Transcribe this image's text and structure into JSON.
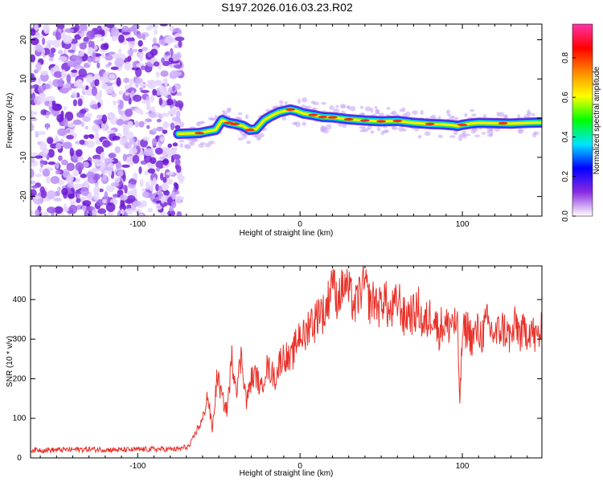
{
  "title": "S197.2026.016.03.23.R02",
  "chart_data": [
    {
      "type": "heatmap",
      "name": "spectrogram",
      "xlabel": "Height of straight line (km)",
      "ylabel": "Frequency (Hz)",
      "xlim": [
        -166,
        149
      ],
      "ylim": [
        -25,
        24
      ],
      "xticks": [
        -100,
        0,
        100
      ],
      "yticks": [
        -20,
        -10,
        0,
        10,
        20
      ],
      "noise_region_x": [
        -166,
        -73
      ],
      "signal_track": {
        "x": [
          -75,
          -62,
          -52,
          -48,
          -44,
          -40,
          -35,
          -31,
          -27,
          -22,
          -18,
          -13,
          -10,
          -6,
          -2,
          2,
          8,
          14,
          20,
          30,
          40,
          50,
          60,
          70,
          80,
          88,
          94,
          97,
          100,
          105,
          110,
          120,
          130,
          140,
          149
        ],
        "y": [
          -4,
          -3.8,
          -3,
          -0.5,
          -1.2,
          -1.5,
          -2,
          -3,
          -2.8,
          -0.5,
          0.5,
          1.5,
          1.8,
          2.2,
          1.8,
          1.2,
          0.8,
          0.3,
          0.2,
          -0.3,
          -0.6,
          -0.8,
          -0.7,
          -1.2,
          -1.5,
          -1.6,
          -1.8,
          -2.0,
          -1.7,
          -1.4,
          -1.2,
          -1.3,
          -1.4,
          -1.2,
          -1.1
        ]
      },
      "colorbar": {
        "label": "Normalized spectral amplitude",
        "ticks": [
          0.0,
          0.2,
          0.4,
          0.6,
          0.8
        ],
        "tick_labels": [
          "0.0",
          "0.2",
          "0.4",
          "0.6",
          "0.8"
        ],
        "range": [
          0,
          0.97
        ],
        "colors": [
          "#ffffff",
          "#8a2be2",
          "#0000ff",
          "#00e5ff",
          "#00ff00",
          "#ffff00",
          "#ff8800",
          "#ff0000",
          "#ff33aa"
        ]
      }
    },
    {
      "type": "line",
      "name": "snr",
      "xlabel": "Height of straight line (km)",
      "ylabel": "SNR (10 * v/v)",
      "xlim": [
        -166,
        149
      ],
      "ylim": [
        0,
        485
      ],
      "xticks": [
        -100,
        0,
        100
      ],
      "yticks": [
        0,
        100,
        200,
        300,
        400
      ],
      "color": "#e8322a",
      "series": [
        {
          "name": "SNR",
          "x": [
            -166,
            -150,
            -130,
            -110,
            -90,
            -75,
            -68,
            -63,
            -60,
            -57,
            -54,
            -51,
            -48,
            -45,
            -42,
            -39,
            -36,
            -33,
            -30,
            -27,
            -24,
            -21,
            -18,
            -15,
            -12,
            -9,
            -6,
            -3,
            0,
            3,
            6,
            9,
            12,
            15,
            18,
            20,
            22,
            25,
            28,
            31,
            34,
            37,
            40,
            43,
            46,
            49,
            52,
            55,
            58,
            61,
            64,
            67,
            70,
            73,
            76,
            79,
            82,
            85,
            88,
            91,
            94,
            97,
            98.5,
            100,
            103,
            106,
            109,
            112,
            115,
            118,
            121,
            124,
            127,
            130,
            133,
            136,
            139,
            142,
            145,
            149
          ],
          "y": [
            20,
            20,
            22,
            20,
            22,
            22,
            30,
            75,
            95,
            160,
            70,
            210,
            150,
            120,
            250,
            180,
            260,
            140,
            200,
            210,
            170,
            230,
            220,
            200,
            250,
            260,
            240,
            280,
            320,
            300,
            350,
            340,
            380,
            360,
            410,
            470,
            400,
            420,
            440,
            410,
            380,
            420,
            440,
            390,
            400,
            380,
            410,
            360,
            380,
            400,
            350,
            370,
            360,
            380,
            330,
            350,
            370,
            320,
            340,
            330,
            350,
            320,
            145,
            310,
            330,
            300,
            320,
            310,
            340,
            320,
            310,
            330,
            320,
            300,
            340,
            310,
            320,
            330,
            300,
            320
          ]
        }
      ]
    }
  ]
}
